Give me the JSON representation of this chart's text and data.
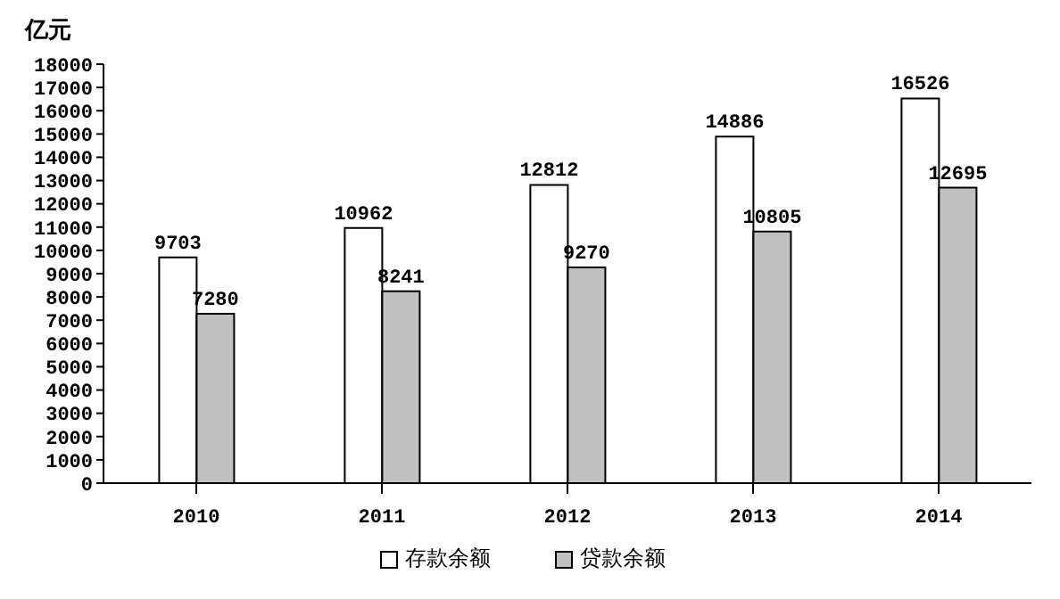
{
  "chart_data": {
    "type": "bar",
    "ylabel": "亿元",
    "categories": [
      "2010",
      "2011",
      "2012",
      "2013",
      "2014"
    ],
    "series": [
      {
        "name": "存款余额",
        "color": "#ffffff",
        "values": [
          9703,
          10962,
          12812,
          14886,
          16526
        ]
      },
      {
        "name": "贷款余额",
        "color": "#c0c0c0",
        "values": [
          7280,
          8241,
          9270,
          10805,
          12695
        ]
      }
    ],
    "ylim": [
      0,
      18000
    ],
    "yticks": [
      0,
      1000,
      2000,
      3000,
      4000,
      5000,
      6000,
      7000,
      8000,
      9000,
      10000,
      11000,
      12000,
      13000,
      14000,
      15000,
      16000,
      17000,
      18000
    ],
    "data_labels": true,
    "legend": "bottom",
    "grid": false
  }
}
